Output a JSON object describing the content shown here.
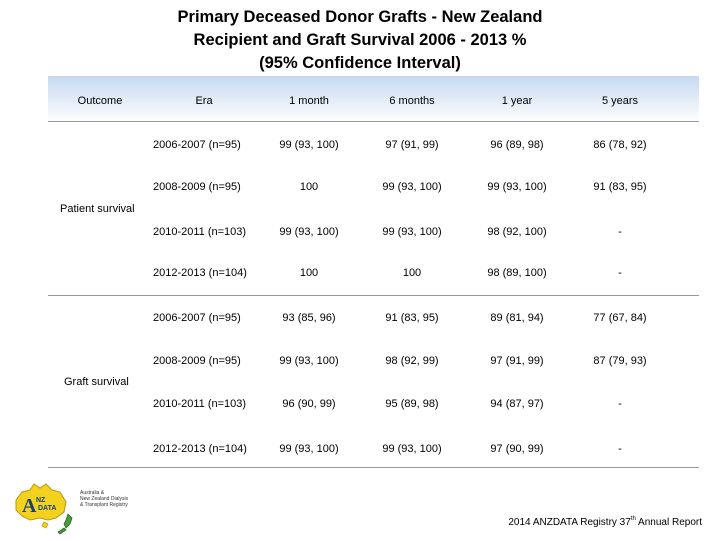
{
  "title": {
    "line1": "Primary Deceased Donor Grafts - New Zealand",
    "line2": "Recipient and Graft Survival 2006 - 2013 %",
    "line3": "(95% Confidence Interval)"
  },
  "table": {
    "headers": [
      "Outcome",
      "Era",
      "1 month",
      "6 months",
      "1 year",
      "5 years"
    ],
    "groups": [
      {
        "label": "Patient survival",
        "rows": [
          [
            "2006-2007 (n=95)",
            "99 (93, 100)",
            "97 (91, 99)",
            "96 (89, 98)",
            "86 (78, 92)"
          ],
          [
            "2008-2009 (n=95)",
            "100",
            "99 (93, 100)",
            "99 (93, 100)",
            "91 (83, 95)"
          ],
          [
            "2010-2011 (n=103)",
            "99 (93, 100)",
            "99 (93, 100)",
            "98 (92, 100)",
            "-"
          ],
          [
            "2012-2013 (n=104)",
            "100",
            "100",
            "98 (89, 100)",
            "-"
          ]
        ]
      },
      {
        "label": "Graft survival",
        "rows": [
          [
            "2006-2007 (n=95)",
            "93 (85, 96)",
            "91 (83, 95)",
            "89 (81, 94)",
            "77 (67, 84)"
          ],
          [
            "2008-2009 (n=95)",
            "99 (93, 100)",
            "98 (92, 99)",
            "97 (91, 99)",
            "87 (79, 93)"
          ],
          [
            "2010-2011 (n=103)",
            "96 (90, 99)",
            "95 (89, 98)",
            "94 (87, 97)",
            "-"
          ],
          [
            "2012-2013 (n=104)",
            "99 (93, 100)",
            "99 (93, 100)",
            "97 (90, 99)",
            "-"
          ]
        ]
      }
    ]
  },
  "logo": {
    "letters": "ANZ DATA",
    "caption_line1": "Australia &",
    "caption_line2": "New Zealand Dialysis",
    "caption_line3": "& Transplant Registry"
  },
  "footer": {
    "prefix": "2014 ANZDATA Registry 37",
    "sup": "th",
    "suffix": " Annual Report"
  },
  "colors": {
    "header_band": "#c6d9f1",
    "logo_yellow": "#f2d21e",
    "logo_green": "#4a9a3a"
  }
}
